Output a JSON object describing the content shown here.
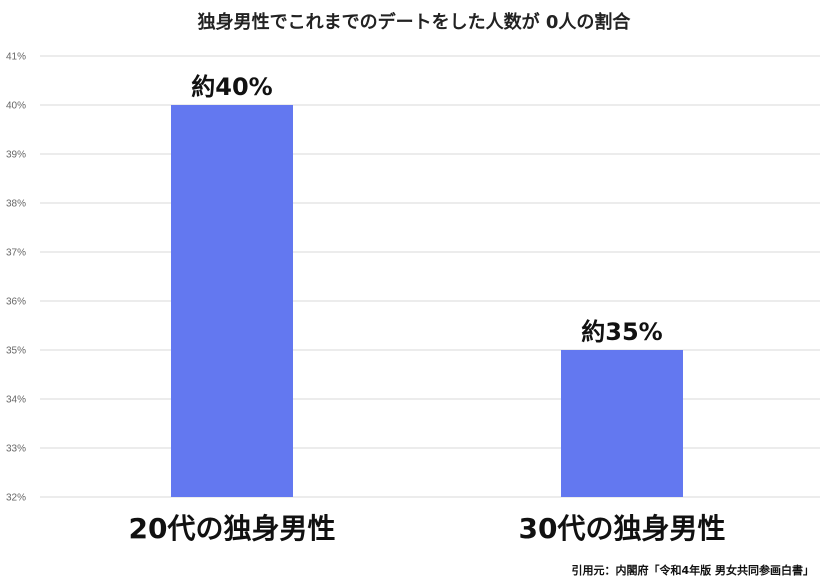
{
  "chart_data": {
    "type": "bar",
    "title": "独身男性でこれまでのデートをした人数が 0人の割合",
    "categories": [
      "20代の独身男性",
      "30代の独身男性"
    ],
    "values": [
      40,
      35
    ],
    "data_labels": [
      "約40%",
      "約35%"
    ],
    "xlabel": "",
    "ylabel": "",
    "ylim": [
      32,
      41
    ],
    "y_ticks": [
      "32%",
      "33%",
      "34%",
      "35%",
      "36%",
      "37%",
      "38%",
      "39%",
      "40%",
      "41%"
    ],
    "grid": true,
    "bar_color": "#6378f0",
    "grid_color": "#d9d9d9"
  },
  "source_note": "引用元：内閣府「令和4年版 男女共同参画白書」"
}
